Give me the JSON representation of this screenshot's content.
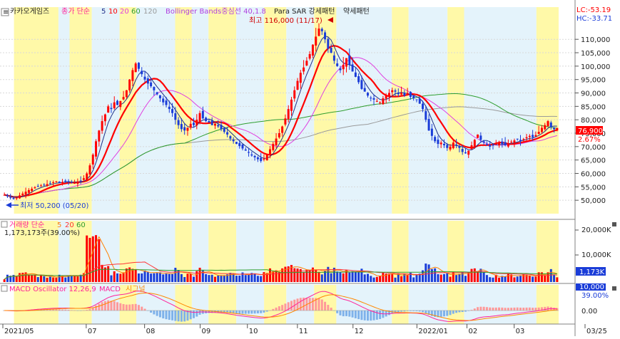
{
  "colors": {
    "up": "#ff0000",
    "down": "#1a3cd8",
    "ma5": "#1f2f88",
    "ma10": "#ff0000",
    "ma20": "#e040e0",
    "ma60": "#2e9e2e",
    "ma120": "#9a9a9a",
    "band_yellow": "#fff9a8",
    "band_blue": "#e4f3fb",
    "vol_ma5": "#ff7f00",
    "vol_ma20": "#ff3333",
    "vol_ma60": "#2e9e2e",
    "macd": "#ff2299",
    "macd_signal": "#ff8800",
    "osc_pos": "#ff9999",
    "osc_neg": "#7fb2ea",
    "last_price_bg": "#ff0000",
    "last_vol_bg": "#1a3cd8"
  },
  "legend": {
    "name": "카카오게임즈",
    "icon1": "≡",
    "ma_title": "종가 단순",
    "ma5": "5",
    "ma10": "10",
    "ma20": "20",
    "ma60": "60",
    "ma120": "120",
    "bb": "Bollinger Bands중심선 40,1.8",
    "sar": "Para SAR 강세패턴",
    "sar2": "약세패턴"
  },
  "right_top": {
    "lc": "LC:-53.19",
    "hc": "HC:-33.71"
  },
  "annotations": {
    "high": "최고 116,000 (11/17)",
    "low": "최저 50,200 (05/20)",
    "last_price": "76,900",
    "last_pct": "2.67%",
    "last_volume": "1,173K",
    "last_macd": "39.00%"
  },
  "volume_panel": {
    "title": "거래량 단순",
    "ma5": "5",
    "ma20": "20",
    "ma60": "60",
    "current": "1,173,173주(39.00%)",
    "ticks": [
      "20,000K",
      "10,000K"
    ]
  },
  "macd_panel": {
    "title": "MACD Oscillator 12,26,9",
    "macd": "MACD",
    "signal": "시그널",
    "ticks": [
      "10,000",
      "0.00"
    ]
  },
  "chart_data": {
    "type": "candlestick",
    "y_axis": {
      "ylim": [
        45000,
        122000
      ],
      "ticks": [
        50000,
        55000,
        60000,
        65000,
        70000,
        75000,
        80000,
        85000,
        90000,
        95000,
        100000,
        105000,
        110000
      ],
      "tick_labels": [
        "50,000",
        "55,000",
        "60,000",
        "65,000",
        "70,000",
        "75,000",
        "80,000",
        "85,000",
        "90,000",
        "95,000",
        "100,000",
        "105,000",
        "110,000"
      ]
    },
    "x_axis": {
      "labels": [
        "2021/05",
        "07",
        "08",
        "09",
        "10",
        "11",
        "12",
        "2022/01",
        "02",
        "03",
        "03/25"
      ]
    },
    "close": [
      52000,
      51500,
      51000,
      50500,
      51000,
      51800,
      52500,
      53200,
      53800,
      54300,
      54800,
      55200,
      55500,
      55800,
      56000,
      56300,
      56700,
      57000,
      56500,
      56800,
      57100,
      56900,
      56600,
      56400,
      56800,
      57300,
      58200,
      60000,
      63000,
      67000,
      72000,
      76000,
      79500,
      82000,
      85000,
      84000,
      86500,
      85500,
      87000,
      88500,
      91000,
      95000,
      98500,
      101000,
      99000,
      97000,
      95000,
      93500,
      92500,
      91000,
      89500,
      88000,
      86500,
      85500,
      84000,
      82500,
      80000,
      78000,
      76500,
      76000,
      77000,
      78500,
      78000,
      80000,
      82500,
      80500,
      79500,
      79000,
      78000,
      78500,
      77500,
      76500,
      75500,
      74500,
      73000,
      72000,
      71000,
      70200,
      69300,
      68500,
      67700,
      66700,
      66000,
      65300,
      64600,
      65500,
      67000,
      69000,
      71000,
      73000,
      75000,
      77500,
      80500,
      84000,
      87500,
      91000,
      94500,
      97500,
      99500,
      102000,
      104500,
      108000,
      111000,
      114000,
      113000,
      110000,
      106500,
      105000,
      102000,
      100000,
      98500,
      100500,
      103000,
      100500,
      98000,
      96000,
      94000,
      91500,
      90500,
      89000,
      88000,
      87500,
      87000,
      86500,
      88000,
      89000,
      90000,
      91000,
      90500,
      89500,
      90000,
      89000,
      90000,
      88500,
      88000,
      87500,
      86000,
      84000,
      80000,
      76000,
      74000,
      72000,
      71000,
      71500,
      70500,
      69500,
      70000,
      71500,
      70500,
      69500,
      68000,
      67500,
      68500,
      70500,
      72500,
      74500,
      72500,
      71500,
      70500,
      70000,
      70500,
      71000,
      71500,
      71000,
      70500,
      71200,
      71800,
      72300,
      72800,
      72100,
      72800,
      73500,
      74000,
      73500,
      74300,
      75500,
      77000,
      78000,
      79500,
      77300,
      76500,
      76900
    ],
    "highs": {
      "max": 116000,
      "max_label_date": "11/17",
      "min": 50200,
      "min_label_date": "05/20"
    },
    "last_close": 76900
  }
}
